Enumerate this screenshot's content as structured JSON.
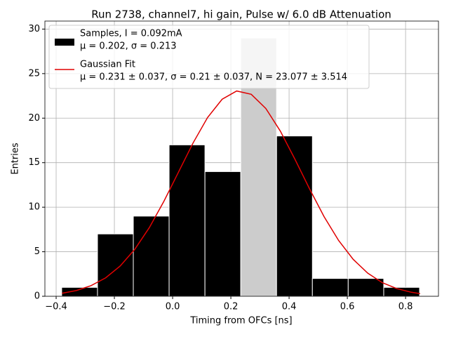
{
  "chart_data": {
    "type": "histogram",
    "title": "Run 2738, channel7, hi gain, Pulse w/ 6.0 dB Attenuation",
    "xlabel": "Timing from OFCs [ns]",
    "ylabel": "Entries",
    "bins": [
      -0.381,
      -0.258,
      -0.135,
      -0.012,
      0.111,
      0.234,
      0.357,
      0.48,
      0.603,
      0.725,
      0.848
    ],
    "counts": [
      1,
      7,
      9,
      17,
      14,
      29,
      18,
      2,
      2,
      1
    ],
    "colors": [
      "#000000",
      "#000000",
      "#000000",
      "#000000",
      "#000000",
      "#cccccc",
      "#000000",
      "#000000",
      "#000000",
      "#000000"
    ],
    "hist_label": [
      "Samples, I = 0.092mA",
      "μ = 0.202, σ = 0.213"
    ],
    "fit": {
      "type": "line",
      "color": "#e00000",
      "label": [
        "Gaussian Fit",
        "μ = 0.231 ± 0.037, σ = 0.21 ± 0.037, N = 23.077 ± 3.514"
      ],
      "x": [
        -0.38,
        -0.33,
        -0.28,
        -0.23,
        -0.18,
        -0.13,
        -0.08,
        -0.03,
        0.02,
        0.07,
        0.12,
        0.17,
        0.22,
        0.27,
        0.32,
        0.37,
        0.42,
        0.47,
        0.52,
        0.57,
        0.62,
        0.67,
        0.72,
        0.77,
        0.82,
        0.85
      ],
      "y": [
        0.335,
        0.651,
        1.195,
        2.07,
        3.4,
        5.27,
        7.71,
        10.66,
        13.93,
        17.2,
        20.07,
        22.12,
        23.05,
        22.68,
        21.09,
        18.54,
        15.39,
        12.08,
        8.95,
        6.27,
        4.15,
        2.6,
        1.53,
        0.86,
        0.45,
        0.3
      ]
    },
    "xlim": [
      -0.4386,
      0.913
    ],
    "ylim": [
      0,
      30.9
    ],
    "xticks": [
      {
        "value": -0.4,
        "label": "−0.4"
      },
      {
        "value": -0.2,
        "label": "−0.2"
      },
      {
        "value": 0,
        "label": "0.0"
      },
      0.2,
      0.4,
      0.6,
      0.8
    ],
    "yticks": [
      0,
      5,
      10,
      15,
      20,
      25,
      30
    ],
    "grid": true,
    "legend": "upper left"
  }
}
